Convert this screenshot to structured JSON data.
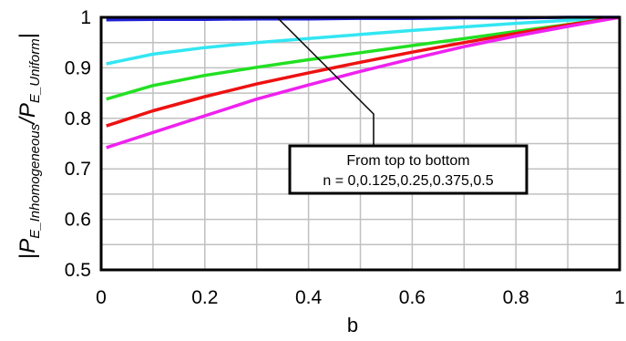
{
  "chart_data": {
    "type": "line",
    "xlabel": "b",
    "ylabel": {
      "bar": "|",
      "p1": "P",
      "sub1": "E_Inhomogeneous",
      "slash": "/",
      "p2": "P",
      "sub2": "E_Uniform",
      "bar_end": "|"
    },
    "xlim": [
      0,
      1
    ],
    "ylim": [
      0.5,
      1.0
    ],
    "x_ticks": [
      0,
      0.2,
      0.4,
      0.6,
      0.8,
      1
    ],
    "x_tick_labels": [
      "0",
      "0.2",
      "0.4",
      "0.6",
      "0.8",
      "1"
    ],
    "y_ticks": [
      0.5,
      0.6,
      0.7,
      0.8,
      0.9,
      1.0
    ],
    "y_tick_labels": [
      "0.5",
      "0.6",
      "0.7",
      "0.8",
      "0.9",
      "1"
    ],
    "grid": true,
    "annotation": {
      "line1": "From top to bottom",
      "line2": "n = 0,0.125,0.25,0.375,0.5"
    },
    "x": [
      0.01,
      0.1,
      0.2,
      0.3,
      0.4,
      0.5,
      0.6,
      0.7,
      0.8,
      0.9,
      1.0
    ],
    "series": [
      {
        "color": "#1f1fd6",
        "values": [
          0.995,
          0.996,
          0.996,
          0.997,
          0.997,
          0.998,
          0.998,
          0.999,
          0.999,
          1.0,
          1.0
        ]
      },
      {
        "color": "#33e6f2",
        "values": [
          0.908,
          0.927,
          0.94,
          0.95,
          0.958,
          0.966,
          0.974,
          0.981,
          0.988,
          0.994,
          1.0
        ]
      },
      {
        "color": "#22e022",
        "values": [
          0.838,
          0.865,
          0.885,
          0.901,
          0.916,
          0.93,
          0.944,
          0.958,
          0.972,
          0.986,
          1.0
        ]
      },
      {
        "color": "#ee1111",
        "values": [
          0.785,
          0.815,
          0.843,
          0.868,
          0.89,
          0.911,
          0.931,
          0.95,
          0.968,
          0.985,
          1.0
        ]
      },
      {
        "color": "#ee22ee",
        "values": [
          0.742,
          0.772,
          0.805,
          0.838,
          0.866,
          0.893,
          0.918,
          0.942,
          0.963,
          0.982,
          1.0
        ]
      }
    ]
  }
}
